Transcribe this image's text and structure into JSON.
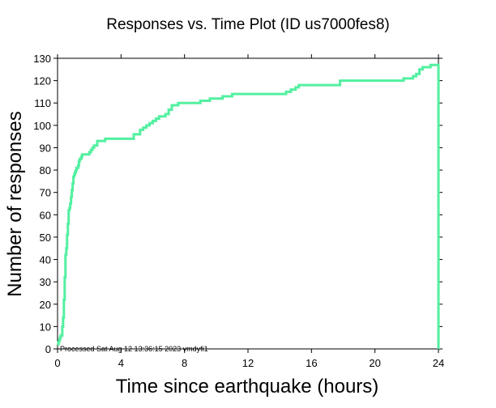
{
  "chart_data": {
    "type": "line",
    "title": "Responses vs. Time Plot (ID us7000fes8)",
    "xlabel": "Time since earthquake (hours)",
    "ylabel": "Number of responses",
    "annotation": "Processed Sat Aug 12 13:36:15 2023 vmdyfi1",
    "xlim": [
      0,
      24
    ],
    "ylim": [
      0,
      130
    ],
    "xticks": [
      "0",
      "4",
      "8",
      "12",
      "16",
      "20",
      "24"
    ],
    "yticks": [
      "0",
      "10",
      "20",
      "30",
      "40",
      "50",
      "60",
      "70",
      "80",
      "90",
      "100",
      "110",
      "120",
      "130"
    ],
    "grid": false,
    "line_color": "#52f0a0",
    "series": [
      {
        "x": [
          0.0,
          0.05,
          0.1,
          0.15,
          0.2,
          0.3,
          0.35,
          0.4,
          0.45,
          0.5,
          0.55,
          0.6,
          0.65,
          0.7,
          0.75,
          0.8,
          0.85,
          0.9,
          0.95,
          1.0,
          1.05,
          1.1,
          1.15,
          1.2,
          1.3,
          1.35,
          1.4,
          1.5,
          1.55,
          1.6,
          1.7,
          1.8,
          1.9,
          2.0,
          2.1,
          2.2,
          2.3,
          2.5,
          2.6,
          2.8,
          3.0,
          3.2,
          3.4,
          3.6,
          3.9,
          4.2,
          4.5,
          4.8,
          5.2,
          5.4,
          5.6,
          5.8,
          6.0,
          6.2,
          6.4,
          6.6,
          6.8,
          7.0,
          7.2,
          7.4,
          7.6,
          7.8,
          8.0,
          9.0,
          9.6,
          10.4,
          11.0,
          11.5,
          12.5,
          14.0,
          14.4,
          14.7,
          15.0,
          15.2,
          17.8,
          21.8,
          22.0,
          22.2,
          22.4,
          22.6,
          22.8,
          23.0,
          23.3,
          23.5,
          23.7,
          23.8,
          23.9,
          24.0
        ],
        "y": [
          2,
          3,
          4,
          5,
          6,
          10,
          14,
          22,
          32,
          42,
          45,
          51,
          56,
          62,
          63,
          65,
          68,
          71,
          74,
          77,
          78,
          79,
          80,
          81,
          82,
          84,
          85,
          86,
          87,
          87,
          87,
          87,
          87,
          88,
          89,
          90,
          91,
          93,
          93,
          93,
          94,
          94,
          94,
          94,
          94,
          94,
          94,
          96,
          98,
          99,
          100,
          101,
          102,
          103,
          104,
          104,
          105,
          107,
          109,
          109,
          110,
          110,
          110,
          111,
          112,
          113,
          114,
          114,
          114,
          114,
          115,
          116,
          117,
          118,
          120,
          121,
          121,
          121,
          122,
          123,
          125,
          126,
          126,
          127,
          127,
          127,
          127,
          0
        ]
      }
    ]
  }
}
